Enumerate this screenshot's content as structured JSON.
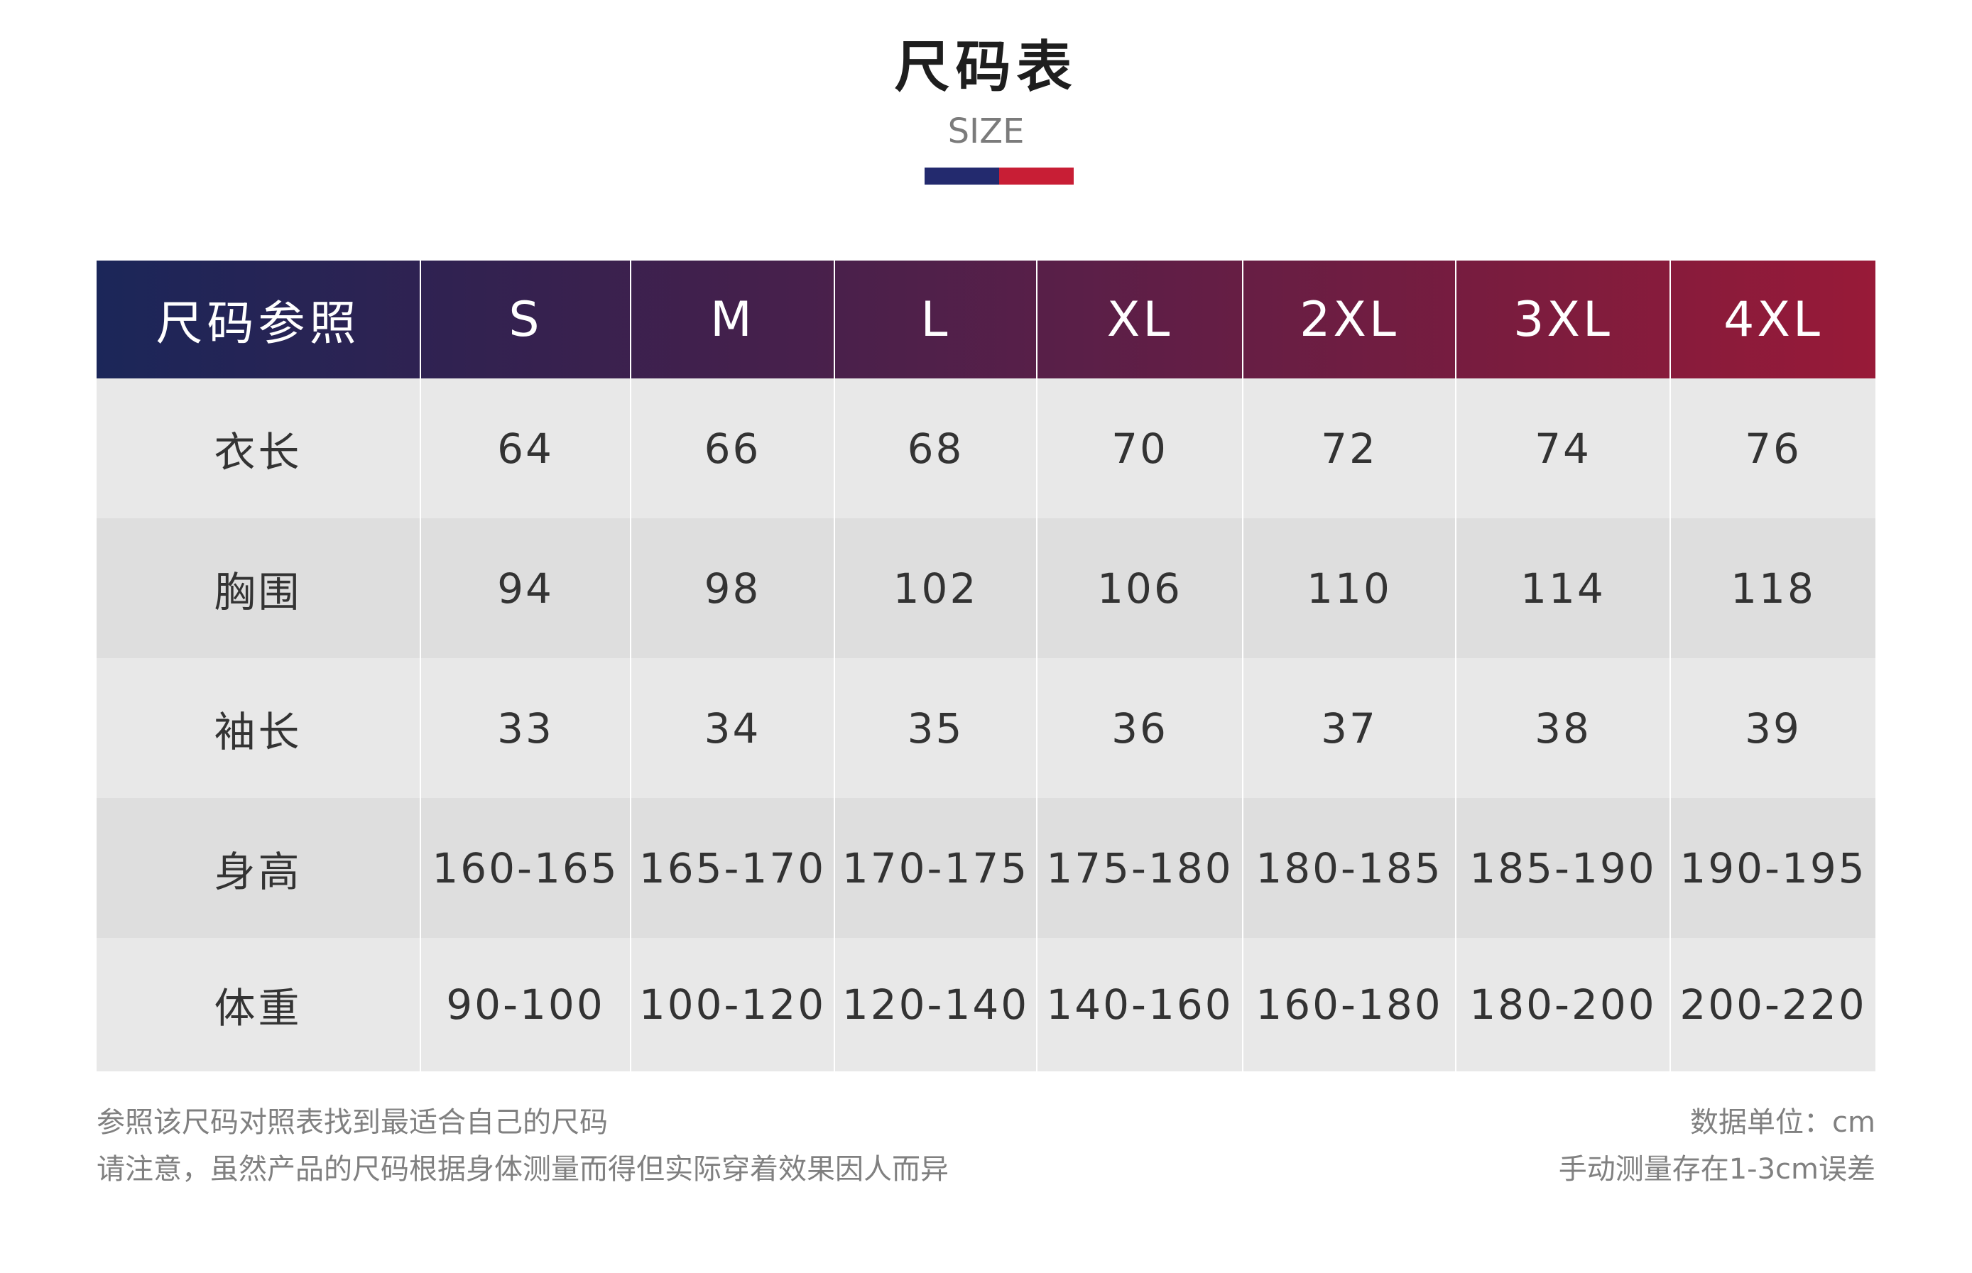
{
  "header": {
    "title": "尺码表",
    "subtitle": "SIZE",
    "accent_colors": [
      "#232a6e",
      "#c81e35"
    ]
  },
  "table": {
    "corner_label": "尺码参照",
    "columns": [
      "S",
      "M",
      "L",
      "XL",
      "2XL",
      "3XL",
      "4XL"
    ],
    "rows": [
      {
        "label": "衣长",
        "values": [
          "64",
          "66",
          "68",
          "70",
          "72",
          "74",
          "76"
        ]
      },
      {
        "label": "胸围",
        "values": [
          "94",
          "98",
          "102",
          "106",
          "110",
          "114",
          "118"
        ]
      },
      {
        "label": "袖长",
        "values": [
          "33",
          "34",
          "35",
          "36",
          "37",
          "38",
          "39"
        ]
      },
      {
        "label": "身高",
        "values": [
          "160-165",
          "165-170",
          "170-175",
          "175-180",
          "180-185",
          "185-190",
          "190-195"
        ]
      },
      {
        "label": "体重",
        "values": [
          "90-100",
          "100-120",
          "120-140",
          "140-160",
          "160-180",
          "180-200",
          "200-220"
        ]
      }
    ],
    "header_gradient": [
      "#1b2659",
      "#981a38"
    ],
    "row_colors": [
      "#e8e8e8",
      "#dedede"
    ]
  },
  "notes": {
    "left_line1": "参照该尺码对照表找到最适合自己的尺码",
    "left_line2": "请注意，虽然产品的尺码根据身体测量而得但实际穿着效果因人而异",
    "right_line1": "数据单位：cm",
    "right_line2": "手动测量存在1-3cm误差"
  }
}
